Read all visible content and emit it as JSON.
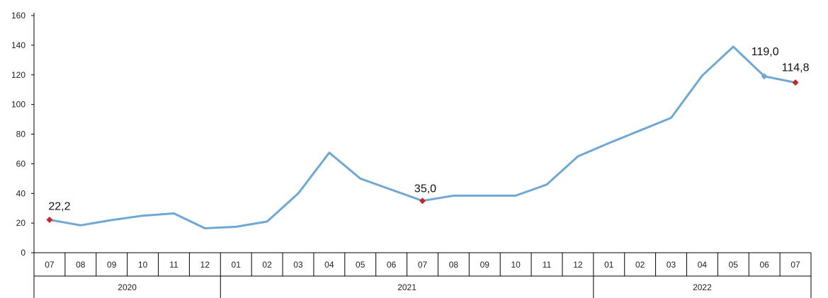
{
  "chart_data": {
    "type": "line",
    "title": "",
    "xlabel": "",
    "ylabel": "",
    "ylim": [
      0,
      160
    ],
    "yticks": [
      0,
      20,
      40,
      60,
      80,
      100,
      120,
      140,
      160
    ],
    "grid": false,
    "legend": "none",
    "line_color": "#6fa8d4",
    "marker_color": "#c0282d",
    "categories": [
      "07",
      "08",
      "09",
      "10",
      "11",
      "12",
      "01",
      "02",
      "03",
      "04",
      "05",
      "06",
      "07",
      "08",
      "09",
      "10",
      "11",
      "12",
      "01",
      "02",
      "03",
      "04",
      "05",
      "06",
      "07"
    ],
    "years": [
      {
        "label": "2020",
        "span": 6
      },
      {
        "label": "2021",
        "span": 12
      },
      {
        "label": "2022",
        "span": 7
      }
    ],
    "series": [
      {
        "values": [
          22.2,
          18.5,
          22.0,
          25.0,
          26.5,
          16.5,
          17.5,
          21.0,
          40.0,
          67.5,
          50.0,
          42.5,
          35.0,
          38.5,
          38.5,
          38.5,
          46.0,
          65.0,
          74.0,
          82.5,
          91.0,
          119.5,
          139.0,
          119.0,
          114.8
        ]
      }
    ],
    "annotations": [
      {
        "index": 0,
        "text": "22,2",
        "marker": "red-diamond"
      },
      {
        "index": 12,
        "text": "35,0",
        "marker": "red-diamond"
      },
      {
        "index": 23,
        "text": "119,0",
        "marker": "blue-diamond"
      },
      {
        "index": 24,
        "text": "114,8",
        "marker": "red-diamond"
      }
    ]
  }
}
